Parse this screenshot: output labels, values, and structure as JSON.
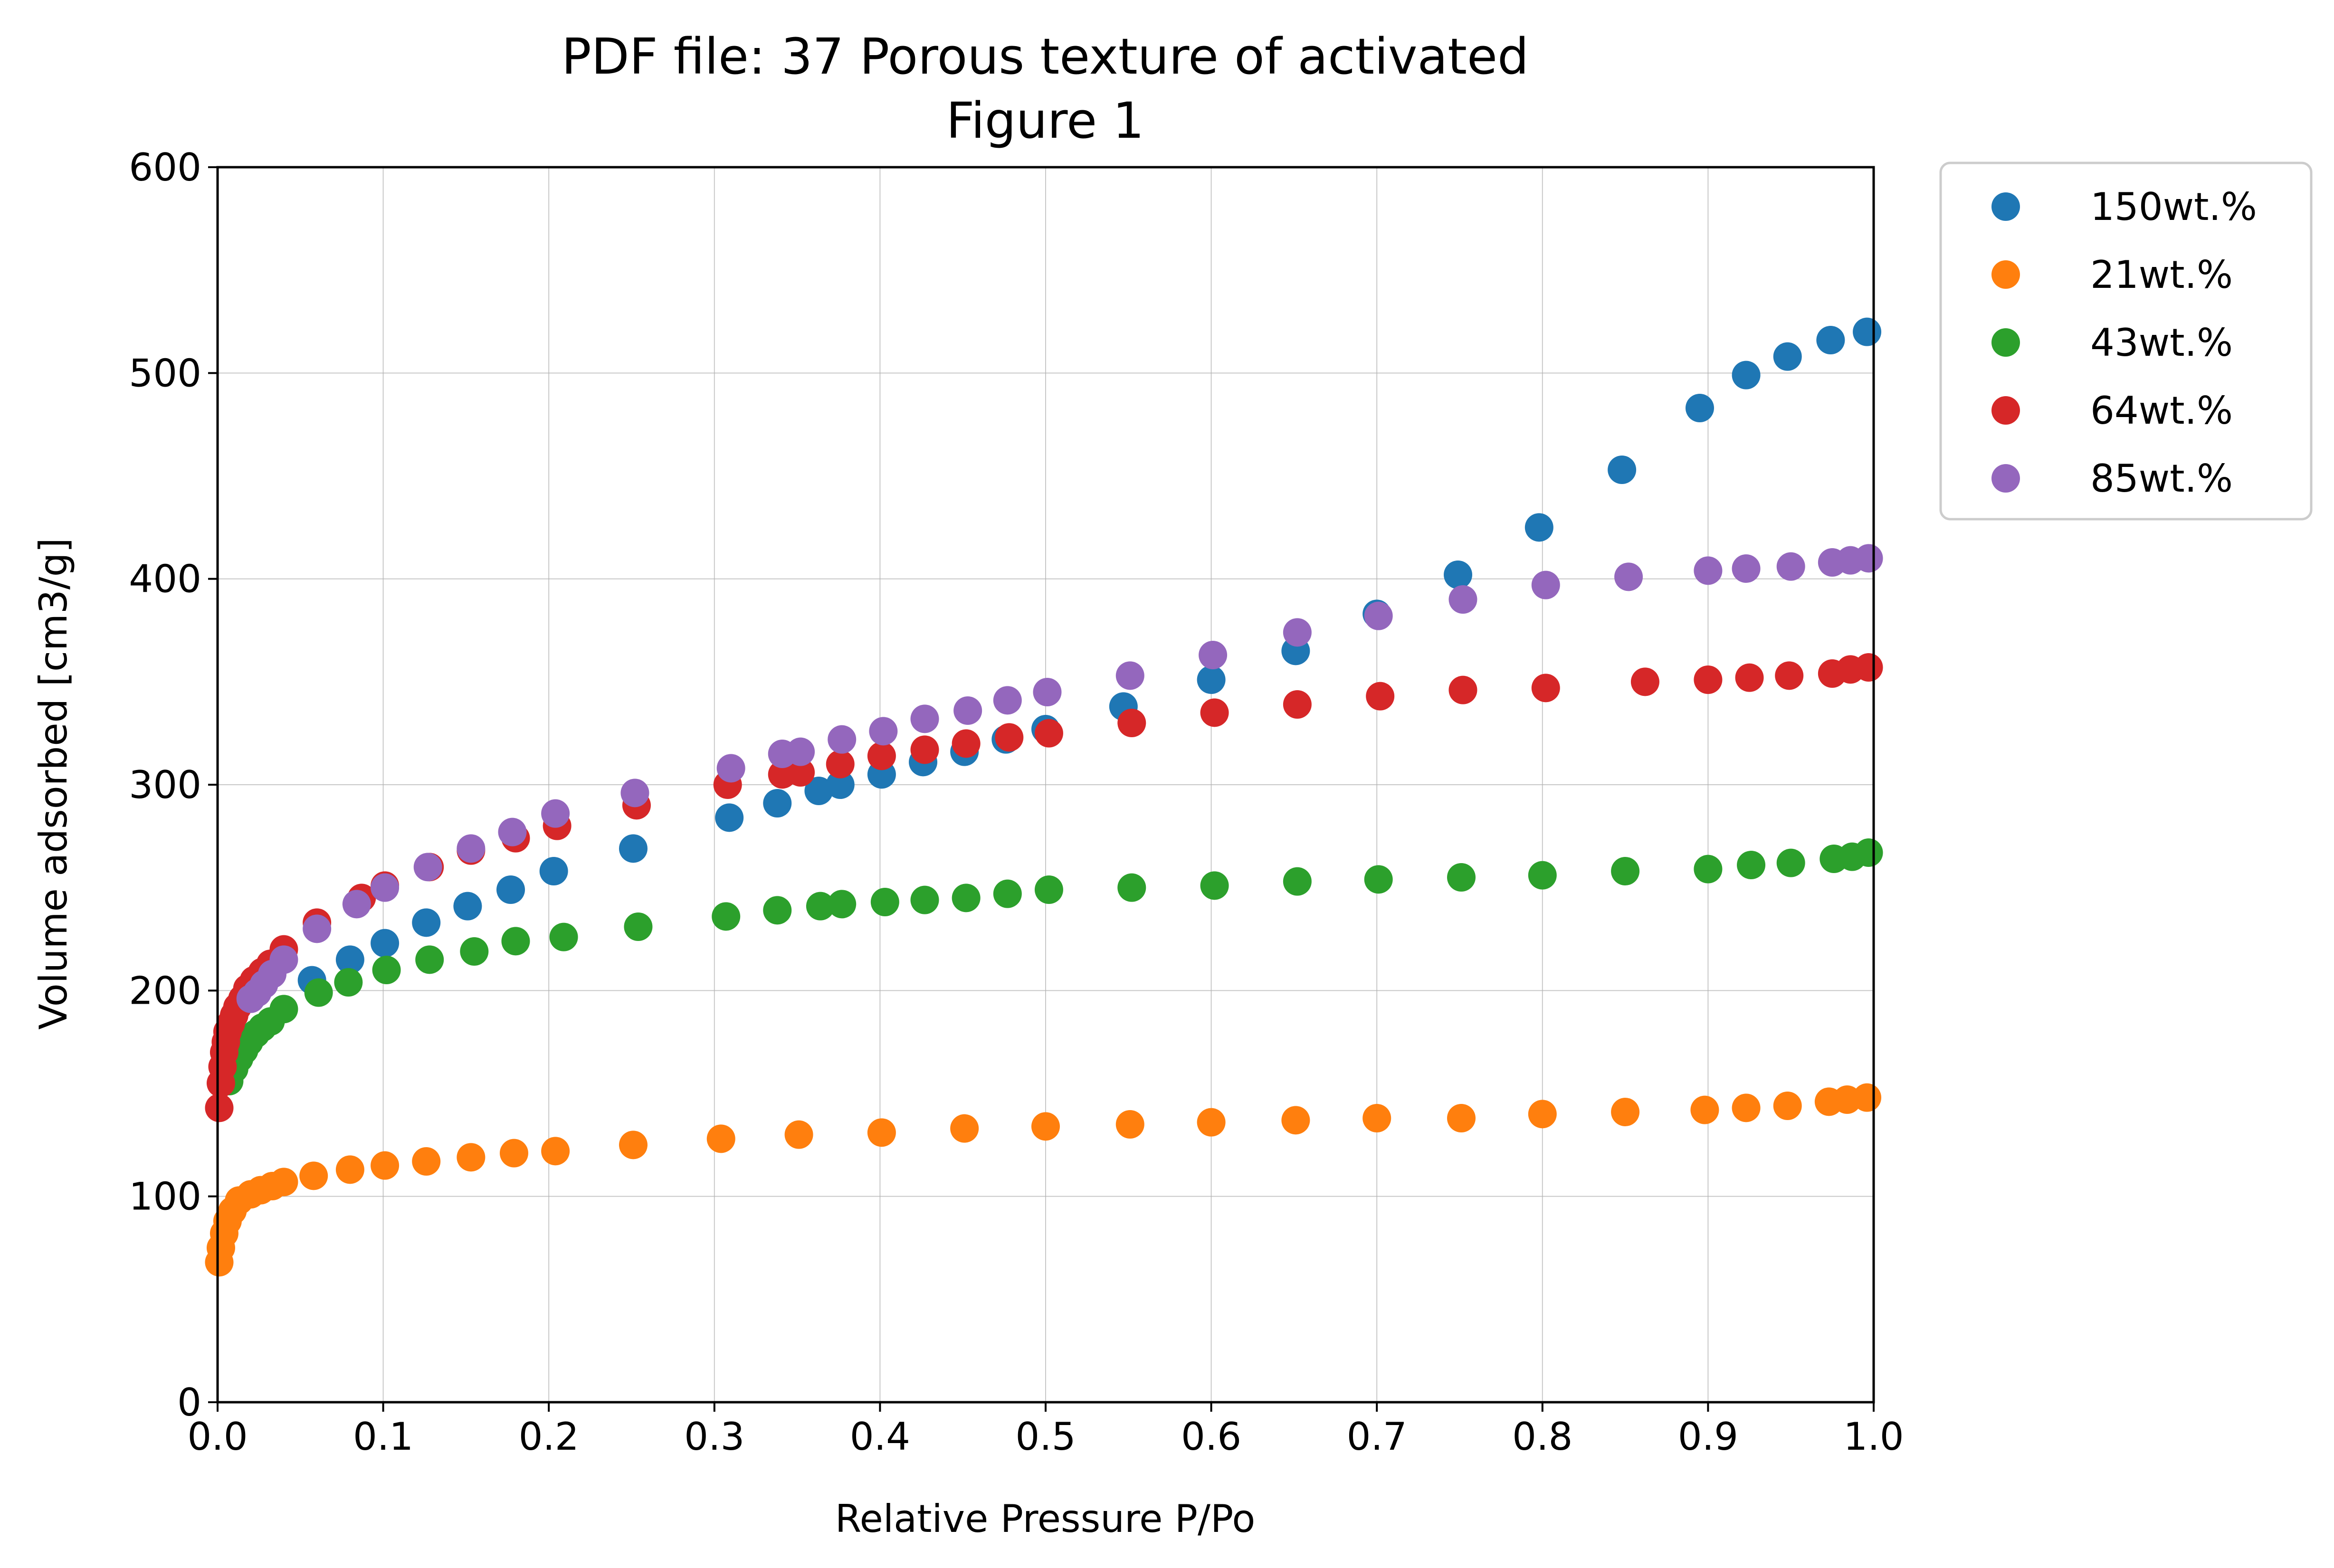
{
  "chart_data": {
    "type": "scatter",
    "title": "PDF file: 37 Porous texture of activated",
    "subtitle": "Figure 1",
    "xlabel": "Relative Pressure P/Po",
    "ylabel": "Volume adsorbed [cm3/g]",
    "xlim": [
      0.0,
      1.0
    ],
    "ylim": [
      0,
      600
    ],
    "xticks": [
      "0.0",
      "0.1",
      "0.2",
      "0.3",
      "0.4",
      "0.5",
      "0.6",
      "0.7",
      "0.8",
      "0.9",
      "1.0"
    ],
    "yticks": [
      "0",
      "100",
      "200",
      "300",
      "400",
      "500",
      "600"
    ],
    "grid": true,
    "legend_position": "outside-top-right",
    "series": [
      {
        "name": "150wt.%",
        "color": "#1f77b4",
        "x": [
          0.057,
          0.08,
          0.101,
          0.126,
          0.151,
          0.177,
          0.203,
          0.251,
          0.309,
          0.338,
          0.363,
          0.376,
          0.401,
          0.426,
          0.451,
          0.476,
          0.5,
          0.547,
          0.6,
          0.651,
          0.7,
          0.749,
          0.798,
          0.848,
          0.895,
          0.923,
          0.948,
          0.974,
          0.996
        ],
        "y": [
          205,
          215,
          223,
          233,
          241,
          249,
          258,
          269,
          284,
          291,
          297,
          300,
          305,
          311,
          316,
          322,
          327,
          338,
          351,
          365,
          383,
          402,
          425,
          453,
          483,
          499,
          508,
          516,
          520
        ]
      },
      {
        "name": "21wt.%",
        "color": "#ff7f0e",
        "x": [
          0.001,
          0.002,
          0.004,
          0.006,
          0.009,
          0.013,
          0.02,
          0.026,
          0.033,
          0.04,
          0.058,
          0.08,
          0.101,
          0.126,
          0.153,
          0.179,
          0.204,
          0.251,
          0.304,
          0.351,
          0.401,
          0.451,
          0.5,
          0.551,
          0.6,
          0.651,
          0.7,
          0.751,
          0.8,
          0.85,
          0.898,
          0.923,
          0.948,
          0.973,
          0.984,
          0.996
        ],
        "y": [
          68,
          75,
          82,
          88,
          93,
          98,
          101,
          103,
          105,
          107,
          110,
          113,
          115,
          117,
          119,
          121,
          122,
          125,
          128,
          130,
          131,
          133,
          134,
          135,
          136,
          137,
          138,
          138,
          140,
          141,
          142,
          143,
          144,
          146,
          147,
          148
        ]
      },
      {
        "name": "43wt.%",
        "color": "#2ca02c",
        "x": [
          0.007,
          0.01,
          0.013,
          0.016,
          0.019,
          0.023,
          0.027,
          0.032,
          0.04,
          0.061,
          0.079,
          0.102,
          0.128,
          0.155,
          0.18,
          0.209,
          0.254,
          0.307,
          0.338,
          0.364,
          0.377,
          0.403,
          0.427,
          0.452,
          0.477,
          0.502,
          0.552,
          0.602,
          0.652,
          0.701,
          0.751,
          0.8,
          0.85,
          0.9,
          0.926,
          0.95,
          0.976,
          0.987,
          0.997
        ],
        "y": [
          156,
          162,
          167,
          171,
          175,
          179,
          182,
          185,
          191,
          199,
          204,
          210,
          215,
          219,
          224,
          226,
          231,
          236,
          239,
          241,
          242,
          243,
          244,
          245,
          247,
          249,
          250,
          251,
          253,
          254,
          255,
          256,
          258,
          259,
          261,
          262,
          264,
          265,
          267
        ]
      },
      {
        "name": "64wt.%",
        "color": "#d62728",
        "x": [
          0.001,
          0.002,
          0.003,
          0.004,
          0.005,
          0.006,
          0.008,
          0.01,
          0.012,
          0.015,
          0.018,
          0.022,
          0.027,
          0.032,
          0.04,
          0.06,
          0.087,
          0.101,
          0.128,
          0.153,
          0.18,
          0.205,
          0.253,
          0.308,
          0.341,
          0.352,
          0.376,
          0.401,
          0.427,
          0.452,
          0.478,
          0.502,
          0.552,
          0.602,
          0.652,
          0.702,
          0.752,
          0.802,
          0.862,
          0.9,
          0.925,
          0.949,
          0.975,
          0.986,
          0.997
        ],
        "y": [
          143,
          155,
          163,
          170,
          175,
          180,
          184,
          188,
          192,
          196,
          201,
          205,
          209,
          213,
          220,
          233,
          245,
          251,
          260,
          268,
          274,
          280,
          290,
          300,
          305,
          306,
          310,
          314,
          317,
          320,
          323,
          325,
          330,
          335,
          339,
          343,
          346,
          347,
          350,
          351,
          352,
          353,
          354,
          356,
          357
        ]
      },
      {
        "name": "85wt.%",
        "color": "#9467bd",
        "x": [
          0.02,
          0.024,
          0.028,
          0.033,
          0.04,
          0.06,
          0.084,
          0.101,
          0.127,
          0.153,
          0.178,
          0.204,
          0.252,
          0.31,
          0.341,
          0.352,
          0.377,
          0.402,
          0.427,
          0.453,
          0.477,
          0.501,
          0.551,
          0.601,
          0.652,
          0.701,
          0.752,
          0.802,
          0.852,
          0.9,
          0.923,
          0.95,
          0.975,
          0.986,
          0.997
        ],
        "y": [
          196,
          199,
          203,
          208,
          215,
          230,
          242,
          250,
          260,
          269,
          277,
          286,
          296,
          308,
          315,
          316,
          322,
          326,
          332,
          336,
          341,
          345,
          353,
          363,
          374,
          382,
          390,
          397,
          401,
          404,
          405,
          406,
          408,
          409,
          410
        ]
      }
    ]
  }
}
